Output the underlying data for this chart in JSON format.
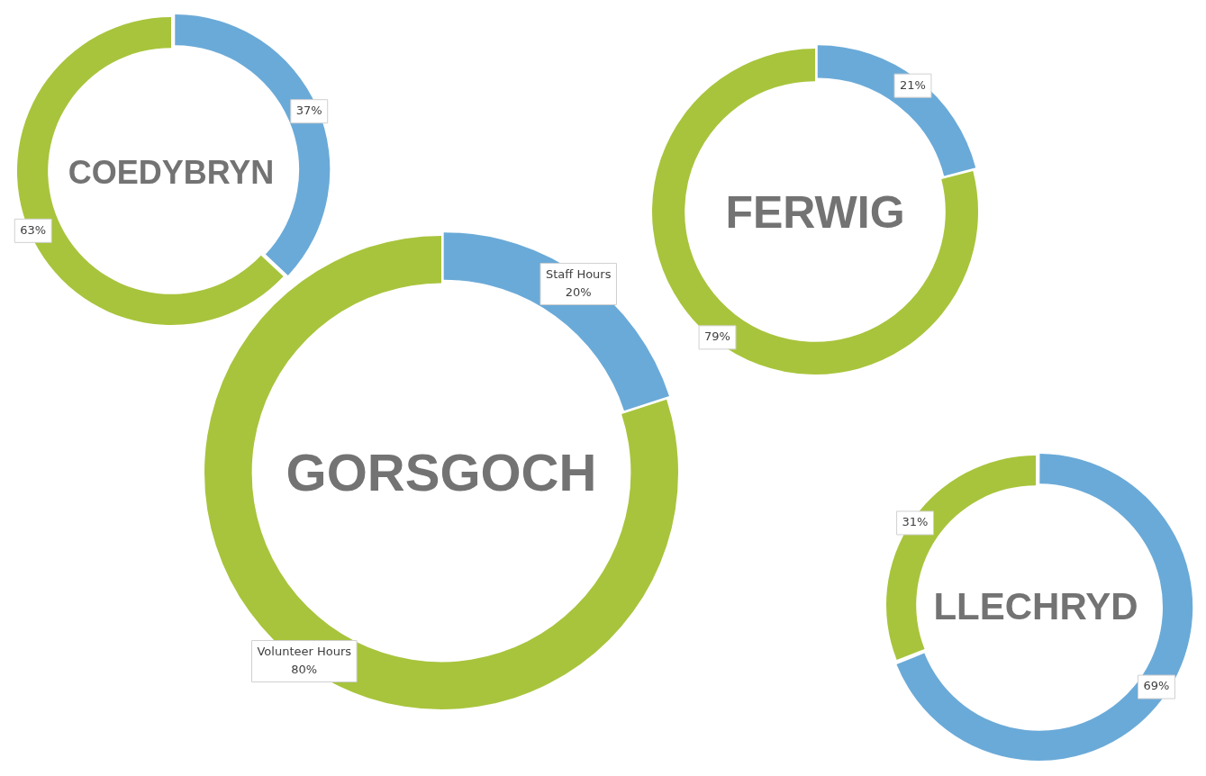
{
  "chart_data": [
    {
      "type": "donut",
      "title": "COEDYBRYN",
      "categories": [
        null,
        null
      ],
      "values": [
        37,
        63
      ],
      "value_labels": [
        "37%",
        "63%"
      ],
      "colors": [
        "#6aaad8",
        "#a8c43c"
      ]
    },
    {
      "type": "donut",
      "title": "FERWIG",
      "categories": [
        null,
        null
      ],
      "values": [
        21,
        79
      ],
      "value_labels": [
        "21%",
        "79%"
      ],
      "colors": [
        "#6aaad8",
        "#a8c43c"
      ]
    },
    {
      "type": "donut",
      "title": "GORSGOCH",
      "categories": [
        "Staff Hours",
        "Volunteer Hours"
      ],
      "values": [
        20,
        80
      ],
      "value_labels": [
        "20%",
        "80%"
      ],
      "colors": [
        "#6aaad8",
        "#a8c43c"
      ]
    },
    {
      "type": "donut",
      "title": "LLECHRYD",
      "categories": [
        null,
        null
      ],
      "values": [
        69,
        31
      ],
      "value_labels": [
        "69%",
        "31%"
      ],
      "colors": [
        "#6aaad8",
        "#a8c43c"
      ]
    }
  ]
}
